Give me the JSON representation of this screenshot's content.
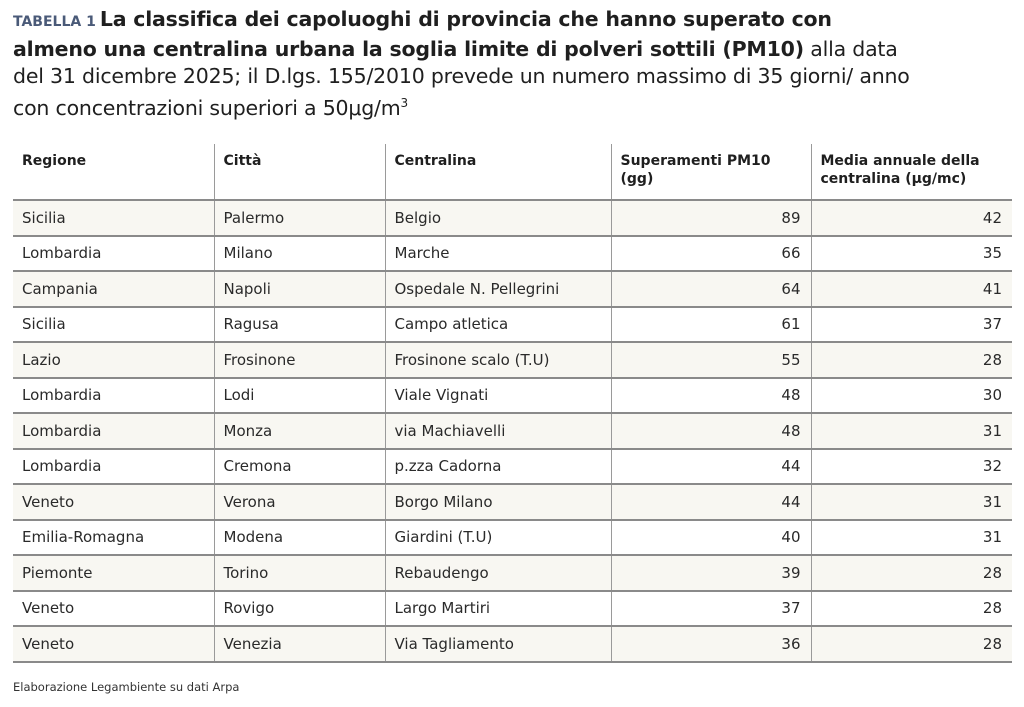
{
  "title": {
    "label": "TABELLA 1",
    "bold_text": "La classifica dei capoluoghi di provincia che hanno superato con almeno una centralina urbana la soglia limite di polveri sottili (PM10)",
    "regular_text": " alla data del 31 dicembre 2025; il D.lgs. 155/2010 prevede un numero massimo di 35 giorni/ anno con concentrazioni superiori a 50μg/m",
    "superscript": "3"
  },
  "colors": {
    "label": "#4a5a78",
    "odd_row_bg": "#f8f7f2",
    "even_row_bg": "#ffffff",
    "grid": "#8a8a8a"
  },
  "table": {
    "headers": [
      "Regione",
      "Città",
      "Centralina",
      "Superamenti PM10 (gg)",
      "Media annuale della centralina (μg/mc)"
    ],
    "rows": [
      {
        "regione": "Sicilia",
        "citta": "Palermo",
        "centralina": "Belgio",
        "superamenti": "89",
        "media": "42"
      },
      {
        "regione": "Lombardia",
        "citta": "Milano",
        "centralina": "Marche",
        "superamenti": "66",
        "media": "35"
      },
      {
        "regione": "Campania",
        "citta": "Napoli",
        "centralina": "Ospedale N. Pellegrini",
        "superamenti": "64",
        "media": "41"
      },
      {
        "regione": "Sicilia",
        "citta": "Ragusa",
        "centralina": "Campo atletica",
        "superamenti": "61",
        "media": "37"
      },
      {
        "regione": "Lazio",
        "citta": "Frosinone",
        "centralina": "Frosinone scalo (T.U)",
        "superamenti": "55",
        "media": "28"
      },
      {
        "regione": "Lombardia",
        "citta": "Lodi",
        "centralina": "Viale Vignati",
        "superamenti": "48",
        "media": "30"
      },
      {
        "regione": "Lombardia",
        "citta": "Monza",
        "centralina": "via Machiavelli",
        "superamenti": "48",
        "media": "31"
      },
      {
        "regione": "Lombardia",
        "citta": "Cremona",
        "centralina": "p.zza Cadorna",
        "superamenti": "44",
        "media": "32"
      },
      {
        "regione": "Veneto",
        "citta": "Verona",
        "centralina": "Borgo Milano",
        "superamenti": "44",
        "media": "31"
      },
      {
        "regione": "Emilia-Romagna",
        "citta": "Modena",
        "centralina": "Giardini (T.U)",
        "superamenti": "40",
        "media": "31"
      },
      {
        "regione": "Piemonte",
        "citta": "Torino",
        "centralina": "Rebaudengo",
        "superamenti": "39",
        "media": "28"
      },
      {
        "regione": "Veneto",
        "citta": "Rovigo",
        "centralina": "Largo Martiri",
        "superamenti": "37",
        "media": "28"
      },
      {
        "regione": "Veneto",
        "citta": "Venezia",
        "centralina": "Via Tagliamento",
        "superamenti": "36",
        "media": "28"
      }
    ]
  },
  "footer": {
    "source": "Elaborazione Legambiente su dati Arpa"
  }
}
